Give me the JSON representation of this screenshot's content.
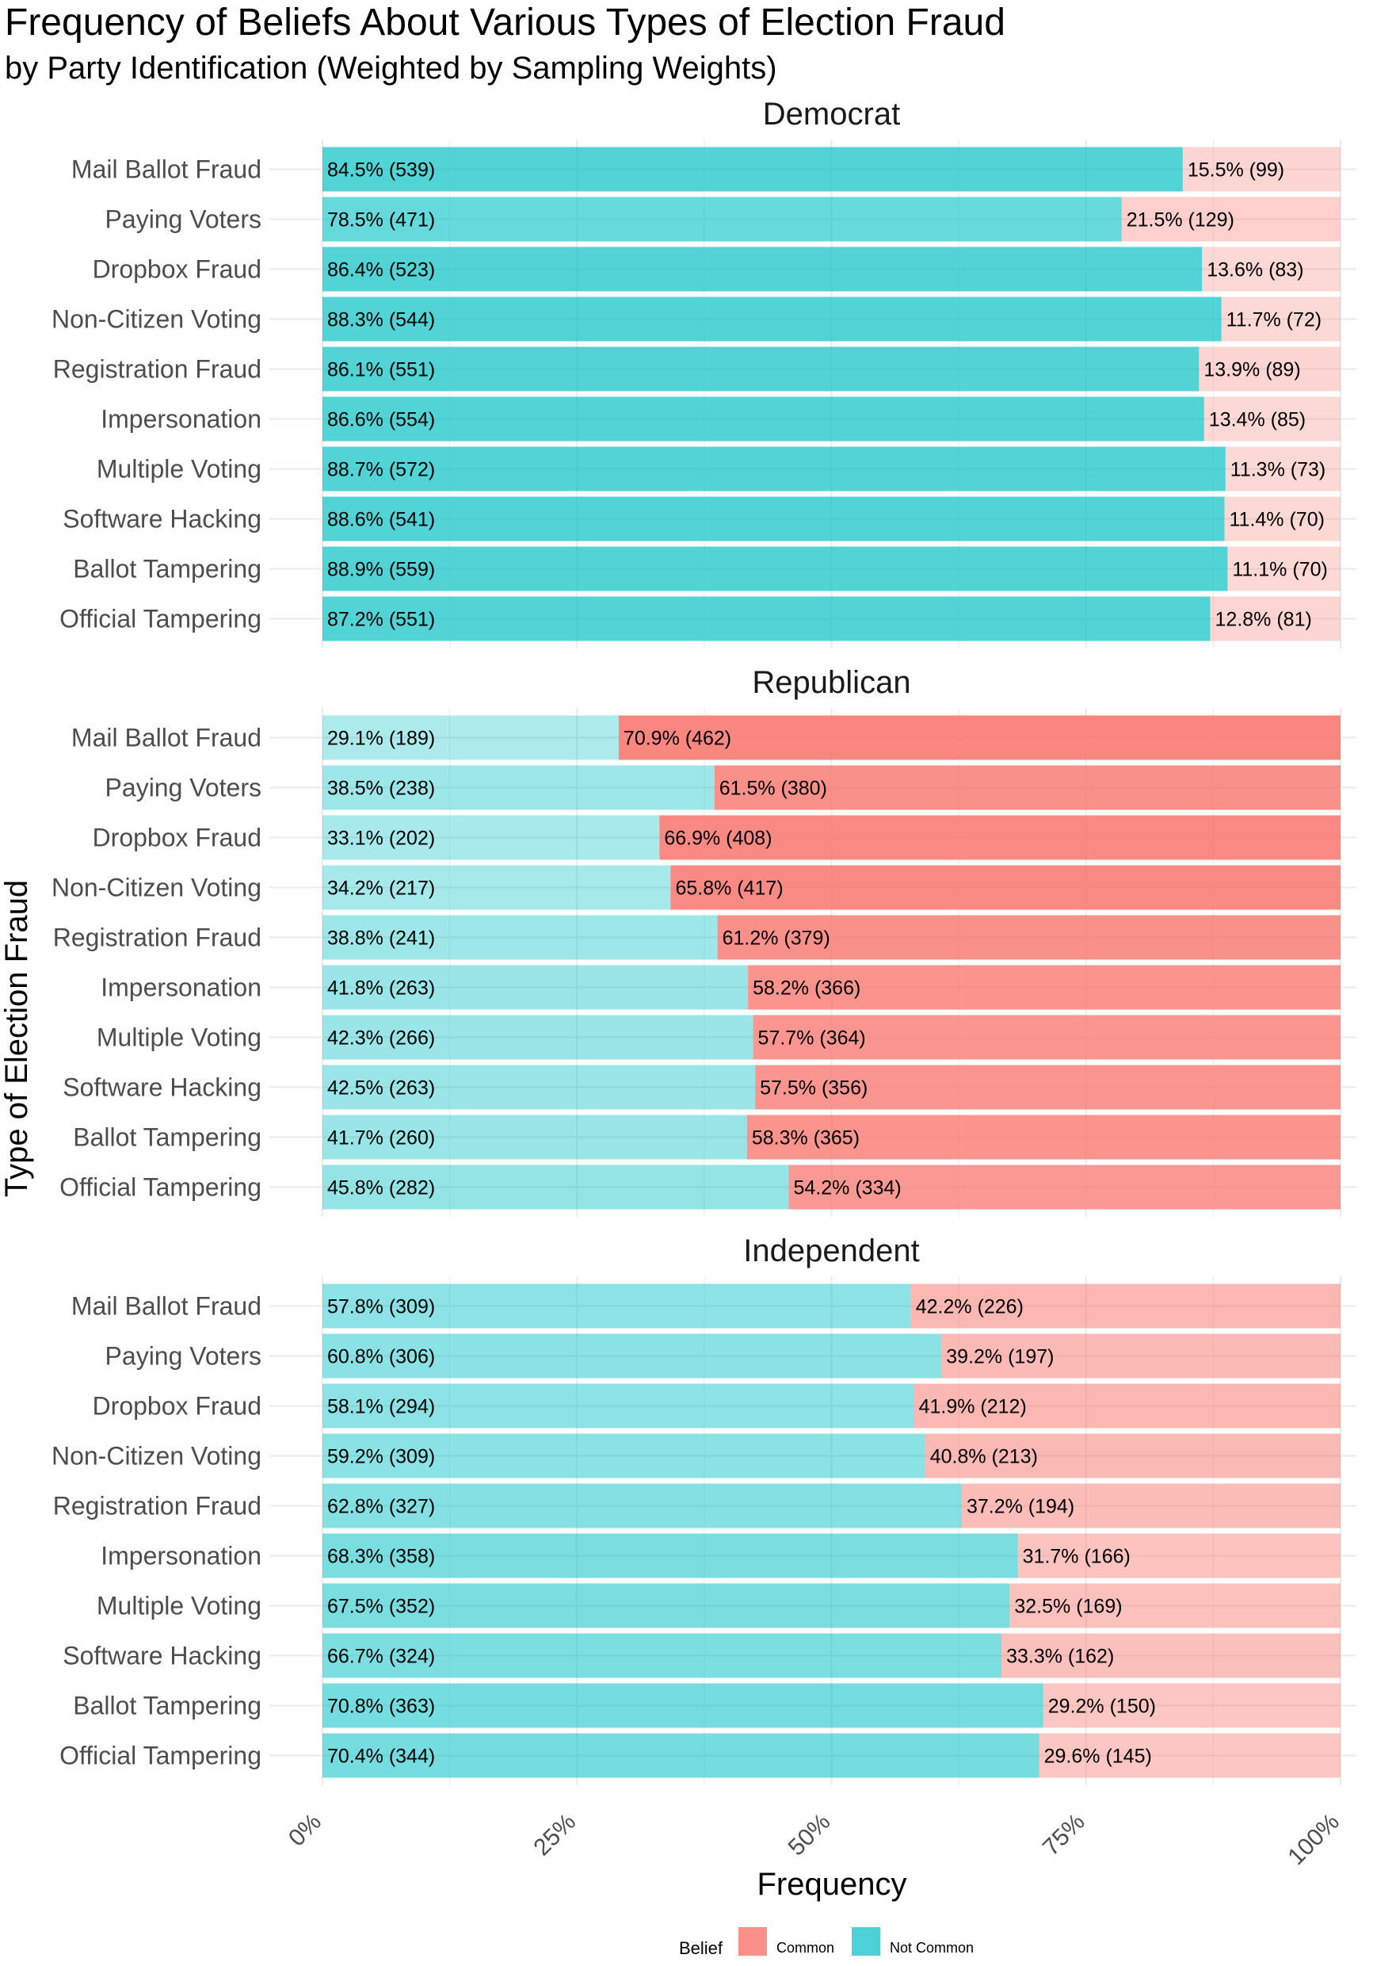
{
  "chart_data": {
    "type": "bar",
    "orientation": "horizontal-stacked-100",
    "title": "Frequency of Beliefs About Various Types of Election Fraud",
    "subtitle": "by Party Identification  (Weighted by Sampling Weights)",
    "xlabel": "Frequency",
    "ylabel": "Type of Election Fraud",
    "xlim": [
      0,
      100
    ],
    "x_ticks": [
      "0%",
      "25%",
      "50%",
      "75%",
      "100%"
    ],
    "x_tick_values": [
      0,
      25,
      50,
      75,
      100
    ],
    "grid": true,
    "legend": {
      "title": "Belief",
      "position": "bottom",
      "entries": [
        {
          "label": "Common",
          "color": "#F8766D"
        },
        {
          "label": "Not Common",
          "color": "#00BFC4"
        }
      ]
    },
    "categories": [
      "Mail Ballot Fraud",
      "Paying Voters",
      "Dropbox Fraud",
      "Non-Citizen Voting",
      "Registration Fraud",
      "Impersonation",
      "Multiple Voting",
      "Software Hacking",
      "Ballot Tampering",
      "Official Tampering"
    ],
    "panels": [
      {
        "name": "Democrat",
        "series": [
          {
            "name": "Not Common",
            "values": [
              84.5,
              78.5,
              86.4,
              88.3,
              86.1,
              86.6,
              88.7,
              88.6,
              88.9,
              87.2
            ],
            "opacity": [
              0.68,
              0.6,
              0.68,
              0.68,
              0.68,
              0.68,
              0.68,
              0.68,
              0.68,
              0.68
            ],
            "labels": [
              "84.5% (539)",
              "78.5% (471)",
              "86.4% (523)",
              "88.3% (544)",
              "86.1% (551)",
              "86.6% (554)",
              "88.7% (572)",
              "88.6% (541)",
              "88.9% (559)",
              "87.2% (551)"
            ]
          },
          {
            "name": "Common",
            "values": [
              15.5,
              21.5,
              13.6,
              11.7,
              13.9,
              13.4,
              11.3,
              11.4,
              11.1,
              12.8
            ],
            "opacity": [
              0.3,
              0.34,
              0.28,
              0.28,
              0.3,
              0.28,
              0.28,
              0.28,
              0.28,
              0.3
            ],
            "labels": [
              "15.5% (99)",
              "21.5% (129)",
              "13.6% (83)",
              "11.7% (72)",
              "13.9% (89)",
              "13.4% (85)",
              "11.3% (73)",
              "11.4% (70)",
              "11.1% (70)",
              "12.8% (81)"
            ]
          }
        ]
      },
      {
        "name": "Republican",
        "series": [
          {
            "name": "Not Common",
            "values": [
              29.1,
              38.5,
              33.1,
              34.2,
              38.8,
              41.8,
              42.3,
              42.5,
              41.7,
              45.8
            ],
            "opacity": [
              0.32,
              0.38,
              0.34,
              0.35,
              0.38,
              0.4,
              0.4,
              0.4,
              0.4,
              0.42
            ],
            "labels": [
              "29.1% (189)",
              "38.5% (238)",
              "33.1% (202)",
              "34.2% (217)",
              "38.8% (241)",
              "41.8% (263)",
              "42.3% (266)",
              "42.5% (263)",
              "41.7% (260)",
              "45.8% (282)"
            ]
          },
          {
            "name": "Common",
            "values": [
              70.9,
              61.5,
              66.9,
              65.8,
              61.2,
              58.2,
              57.7,
              57.5,
              58.3,
              54.2
            ],
            "opacity": [
              0.88,
              0.8,
              0.86,
              0.85,
              0.8,
              0.78,
              0.77,
              0.77,
              0.78,
              0.74
            ],
            "labels": [
              "70.9% (462)",
              "61.5% (380)",
              "66.9% (408)",
              "65.8% (417)",
              "61.2% (379)",
              "58.2% (366)",
              "57.7% (364)",
              "57.5% (356)",
              "58.3% (365)",
              "54.2% (334)"
            ]
          }
        ]
      },
      {
        "name": "Independent",
        "series": [
          {
            "name": "Not Common",
            "values": [
              57.8,
              60.8,
              58.1,
              59.2,
              62.8,
              68.3,
              67.5,
              66.7,
              70.8,
              70.4
            ],
            "opacity": [
              0.45,
              0.46,
              0.45,
              0.46,
              0.48,
              0.52,
              0.52,
              0.51,
              0.54,
              0.54
            ],
            "labels": [
              "57.8% (309)",
              "60.8% (306)",
              "58.1% (294)",
              "59.2% (309)",
              "62.8% (327)",
              "68.3% (358)",
              "67.5% (352)",
              "66.7% (324)",
              "70.8% (363)",
              "70.4% (344)"
            ]
          },
          {
            "name": "Common",
            "values": [
              42.2,
              39.2,
              41.9,
              40.8,
              37.2,
              31.7,
              32.5,
              33.3,
              29.2,
              29.6
            ],
            "opacity": [
              0.52,
              0.5,
              0.52,
              0.51,
              0.48,
              0.44,
              0.45,
              0.46,
              0.42,
              0.42
            ],
            "labels": [
              "42.2% (226)",
              "39.2% (197)",
              "41.9% (212)",
              "40.8% (213)",
              "37.2% (194)",
              "31.7% (166)",
              "32.5% (169)",
              "33.3% (162)",
              "29.2% (150)",
              "29.6% (145)"
            ]
          }
        ]
      }
    ]
  }
}
